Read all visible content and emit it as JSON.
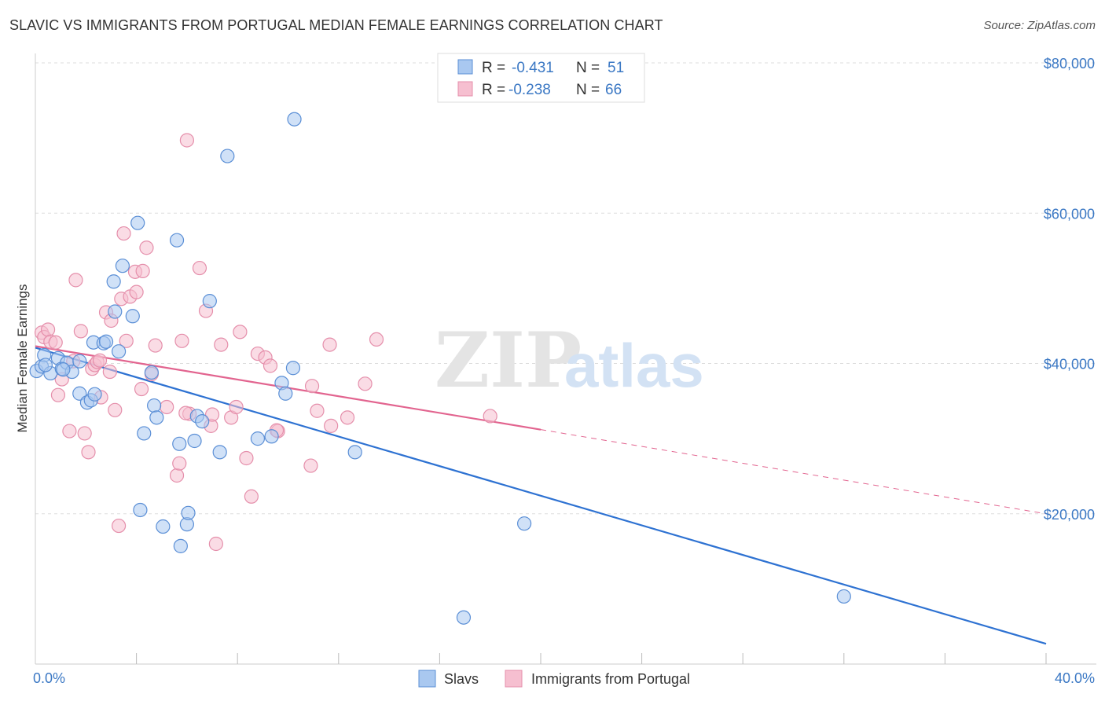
{
  "title": "SLAVIC VS IMMIGRANTS FROM PORTUGAL MEDIAN FEMALE EARNINGS CORRELATION CHART",
  "source": "Source: ZipAtlas.com",
  "watermark": {
    "zip": "ZIP",
    "atlas": "atlas"
  },
  "colors": {
    "slavs_fill": "#a9c8f0",
    "slavs_stroke": "#5b8fd6",
    "slavs_line": "#2e72d2",
    "portugal_fill": "#f6bfd0",
    "portugal_stroke": "#e58fab",
    "portugal_line": "#e2648f",
    "axis_label": "#3b78c4",
    "grid": "#dddddd"
  },
  "legend": {
    "rows": [
      {
        "r_label": "R =",
        "r_value": "-0.431",
        "n_label": "N =",
        "n_value": "51"
      },
      {
        "r_label": "R =",
        "r_value": "-0.238",
        "n_label": "N =",
        "n_value": "66"
      }
    ]
  },
  "bottom_legend": [
    "Slavs",
    "Immigrants from Portugal"
  ],
  "chart_data": {
    "type": "scatter",
    "title": "SLAVIC VS IMMIGRANTS FROM PORTUGAL MEDIAN FEMALE EARNINGS CORRELATION CHART",
    "xlabel": "",
    "ylabel": "Median Female Earnings",
    "xlim": [
      0,
      40
    ],
    "ylim": [
      0,
      82000
    ],
    "x_tick_labels": [
      "0.0%",
      "40.0%"
    ],
    "y_ticks": [
      20000,
      40000,
      60000,
      80000
    ],
    "y_tick_labels": [
      "$20,000",
      "$40,000",
      "$60,000",
      "$80,000"
    ],
    "grid": true,
    "series": [
      {
        "name": "Slavs",
        "points": [
          [
            0.05,
            39000
          ],
          [
            0.25,
            39600
          ],
          [
            0.35,
            41100
          ],
          [
            0.6,
            38700
          ],
          [
            0.9,
            40700
          ],
          [
            1.05,
            39300
          ],
          [
            1.25,
            40100
          ],
          [
            1.45,
            38900
          ],
          [
            1.75,
            40300
          ],
          [
            1.75,
            36000
          ],
          [
            2.05,
            34800
          ],
          [
            2.2,
            35100
          ],
          [
            2.35,
            35900
          ],
          [
            2.3,
            42800
          ],
          [
            2.7,
            42700
          ],
          [
            2.8,
            42900
          ],
          [
            3.1,
            50900
          ],
          [
            3.15,
            46900
          ],
          [
            3.3,
            41600
          ],
          [
            3.45,
            53000
          ],
          [
            3.85,
            46300
          ],
          [
            4.05,
            58700
          ],
          [
            4.15,
            20500
          ],
          [
            4.3,
            30700
          ],
          [
            4.6,
            38800
          ],
          [
            4.7,
            34400
          ],
          [
            4.8,
            32800
          ],
          [
            5.05,
            18300
          ],
          [
            5.6,
            56400
          ],
          [
            5.7,
            29300
          ],
          [
            5.75,
            15700
          ],
          [
            6.0,
            18600
          ],
          [
            6.05,
            20100
          ],
          [
            6.3,
            29700
          ],
          [
            6.4,
            33000
          ],
          [
            6.6,
            32300
          ],
          [
            6.9,
            48300
          ],
          [
            7.3,
            28200
          ],
          [
            7.6,
            67600
          ],
          [
            8.8,
            30000
          ],
          [
            9.35,
            30300
          ],
          [
            9.75,
            37400
          ],
          [
            9.9,
            36000
          ],
          [
            10.2,
            39400
          ],
          [
            10.25,
            72500
          ],
          [
            12.65,
            28200
          ],
          [
            16.95,
            6200
          ],
          [
            19.35,
            18700
          ],
          [
            32.0,
            9000
          ],
          [
            1.1,
            39200
          ],
          [
            0.4,
            39800
          ]
        ]
      },
      {
        "name": "Immigrants from Portugal",
        "points": [
          [
            0.25,
            44100
          ],
          [
            0.35,
            43500
          ],
          [
            0.5,
            44500
          ],
          [
            0.6,
            42900
          ],
          [
            0.8,
            42800
          ],
          [
            0.9,
            35800
          ],
          [
            1.05,
            37900
          ],
          [
            1.35,
            31000
          ],
          [
            1.5,
            40300
          ],
          [
            1.6,
            51100
          ],
          [
            1.8,
            44300
          ],
          [
            1.95,
            30700
          ],
          [
            2.1,
            28200
          ],
          [
            2.25,
            39300
          ],
          [
            2.35,
            39800
          ],
          [
            2.45,
            40200
          ],
          [
            2.55,
            40400
          ],
          [
            2.6,
            35500
          ],
          [
            2.8,
            46800
          ],
          [
            2.95,
            38900
          ],
          [
            3.0,
            45700
          ],
          [
            3.15,
            33800
          ],
          [
            3.3,
            18400
          ],
          [
            3.4,
            48600
          ],
          [
            3.5,
            57300
          ],
          [
            3.6,
            43000
          ],
          [
            3.75,
            48900
          ],
          [
            3.95,
            52200
          ],
          [
            4.0,
            49500
          ],
          [
            4.2,
            36600
          ],
          [
            4.25,
            52300
          ],
          [
            4.4,
            55400
          ],
          [
            4.6,
            38600
          ],
          [
            4.75,
            42400
          ],
          [
            5.2,
            34200
          ],
          [
            5.6,
            25100
          ],
          [
            5.7,
            26700
          ],
          [
            5.8,
            43000
          ],
          [
            6.0,
            69700
          ],
          [
            6.1,
            33300
          ],
          [
            6.5,
            52700
          ],
          [
            6.75,
            47000
          ],
          [
            6.95,
            31700
          ],
          [
            7.0,
            33200
          ],
          [
            7.15,
            16000
          ],
          [
            7.35,
            42500
          ],
          [
            7.75,
            32800
          ],
          [
            7.95,
            34200
          ],
          [
            8.1,
            44200
          ],
          [
            8.35,
            27400
          ],
          [
            8.55,
            22300
          ],
          [
            8.8,
            41300
          ],
          [
            9.1,
            40800
          ],
          [
            9.3,
            39700
          ],
          [
            9.6,
            31000
          ],
          [
            10.9,
            26400
          ],
          [
            10.95,
            37000
          ],
          [
            11.15,
            33700
          ],
          [
            11.7,
            31700
          ],
          [
            11.65,
            42500
          ],
          [
            12.35,
            32800
          ],
          [
            13.05,
            37300
          ],
          [
            13.5,
            43200
          ],
          [
            18.0,
            33000
          ],
          [
            9.55,
            31100
          ],
          [
            5.95,
            33400
          ]
        ]
      }
    ],
    "trendlines": [
      {
        "series": "Slavs",
        "from": [
          0,
          42100
        ],
        "to": [
          40,
          2700
        ],
        "style": "solid"
      },
      {
        "series": "Immigrants from Portugal",
        "from": [
          0,
          42300
        ],
        "to": [
          20,
          31200
        ],
        "style": "solid"
      },
      {
        "series": "Immigrants from Portugal",
        "from": [
          20,
          31200
        ],
        "to": [
          40,
          20000
        ],
        "style": "dashed"
      }
    ],
    "legend_position": "top-center"
  }
}
